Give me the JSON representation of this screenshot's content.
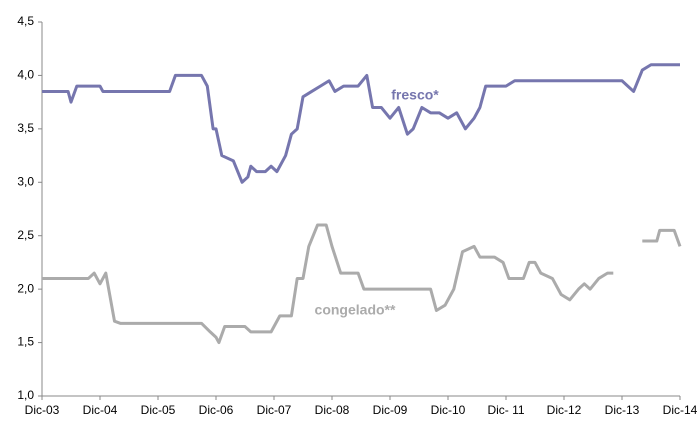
{
  "chart_data": {
    "type": "line",
    "xlim": [
      0,
      11
    ],
    "xticks": [
      {
        "value": 0,
        "label": "Dic-03"
      },
      {
        "value": 1,
        "label": "Dic-04"
      },
      {
        "value": 2,
        "label": "Dic-05"
      },
      {
        "value": 3,
        "label": "Dic-06"
      },
      {
        "value": 4,
        "label": "Dic-07"
      },
      {
        "value": 5,
        "label": "Dic-08"
      },
      {
        "value": 6,
        "label": "Dic-09"
      },
      {
        "value": 7,
        "label": "Dic-10"
      },
      {
        "value": 8,
        "label": "Dic- 11"
      },
      {
        "value": 9,
        "label": "Dic-12"
      },
      {
        "value": 10,
        "label": "Dic-13"
      },
      {
        "value": 11,
        "label": "Dic-14"
      }
    ],
    "ylim": [
      1.0,
      4.5
    ],
    "yticks": [
      {
        "value": 1.0,
        "label": "1,0"
      },
      {
        "value": 1.5,
        "label": "1,5"
      },
      {
        "value": 2.0,
        "label": "2,0"
      },
      {
        "value": 2.5,
        "label": "2,5"
      },
      {
        "value": 3.0,
        "label": "3,0"
      },
      {
        "value": 3.5,
        "label": "3,5"
      },
      {
        "value": 4.0,
        "label": "4,0"
      },
      {
        "value": 4.5,
        "label": "4,5"
      }
    ],
    "grid": false,
    "series": [
      {
        "name": "fresco*",
        "color": "#7676ae",
        "x": [
          0,
          0.45,
          0.5,
          0.6,
          1.0,
          1.05,
          2.2,
          2.3,
          2.75,
          2.85,
          2.95,
          3.0,
          3.1,
          3.3,
          3.45,
          3.55,
          3.6,
          3.7,
          3.85,
          3.95,
          4.05,
          4.2,
          4.3,
          4.4,
          4.5,
          4.65,
          4.8,
          4.95,
          5.05,
          5.2,
          5.45,
          5.6,
          5.7,
          5.85,
          6.0,
          6.15,
          6.3,
          6.4,
          6.55,
          6.7,
          6.85,
          7.0,
          7.15,
          7.3,
          7.45,
          7.55,
          7.65,
          8.0,
          8.15,
          10.0,
          10.1,
          10.2,
          10.35,
          10.5,
          11.0
        ],
        "values": [
          3.85,
          3.85,
          3.75,
          3.9,
          3.9,
          3.85,
          3.85,
          4.0,
          4.0,
          3.9,
          3.5,
          3.5,
          3.25,
          3.2,
          3.0,
          3.05,
          3.15,
          3.1,
          3.1,
          3.15,
          3.1,
          3.25,
          3.45,
          3.5,
          3.8,
          3.85,
          3.9,
          3.95,
          3.85,
          3.9,
          3.9,
          4.0,
          3.7,
          3.7,
          3.6,
          3.7,
          3.45,
          3.5,
          3.7,
          3.65,
          3.65,
          3.6,
          3.65,
          3.5,
          3.6,
          3.7,
          3.9,
          3.9,
          3.95,
          3.95,
          3.9,
          3.85,
          4.05,
          4.1,
          4.1
        ]
      },
      {
        "name": "congelado**",
        "color": "#ababab",
        "x": [
          0,
          0.8,
          0.9,
          1.0,
          1.1,
          1.25,
          1.35,
          2.75,
          2.9,
          3.0,
          3.05,
          3.15,
          3.5,
          3.6,
          3.95,
          4.1,
          4.3,
          4.4,
          4.5,
          4.6,
          4.75,
          4.9,
          5.0,
          5.15,
          5.45,
          5.55,
          6.7,
          6.8,
          6.95,
          7.1,
          7.25,
          7.45,
          7.55,
          7.8,
          7.95,
          8.05,
          8.3,
          8.4,
          8.5,
          8.6,
          8.8,
          8.95,
          9.1,
          9.25,
          9.35,
          9.45,
          9.6,
          9.75,
          9.85,
          10.1,
          10.35,
          10.6,
          10.65,
          10.9,
          11.0
        ],
        "values": [
          2.1,
          2.1,
          2.15,
          2.05,
          2.15,
          1.7,
          1.68,
          1.68,
          1.6,
          1.55,
          1.5,
          1.65,
          1.65,
          1.6,
          1.6,
          1.75,
          1.75,
          2.1,
          2.1,
          2.4,
          2.6,
          2.6,
          2.4,
          2.15,
          2.15,
          2.0,
          2.0,
          1.8,
          1.85,
          2.0,
          2.35,
          2.4,
          2.3,
          2.3,
          2.25,
          2.1,
          2.1,
          2.25,
          2.25,
          2.15,
          2.1,
          1.95,
          1.9,
          2.0,
          2.05,
          2.0,
          2.1,
          2.15,
          2.15,
          null,
          2.45,
          2.45,
          2.55,
          2.55,
          2.4
        ]
      }
    ]
  }
}
